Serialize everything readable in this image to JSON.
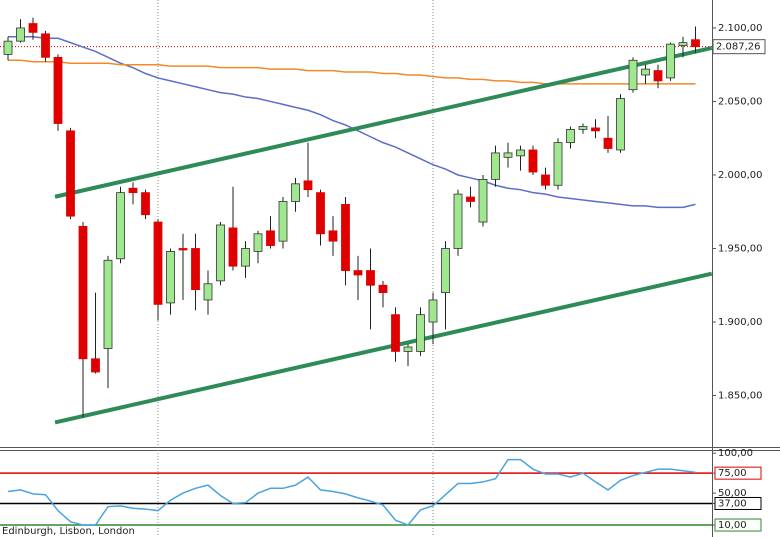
{
  "chart_data": [
    {
      "type": "candlestick",
      "open": [
        2082,
        2091,
        2103,
        2096,
        2080,
        2030,
        1965,
        1875,
        1882,
        1943,
        1991,
        1988,
        1968,
        1913,
        1950,
        1950,
        1915,
        1928,
        1964,
        1938,
        1948,
        1962,
        1955,
        1982,
        1996,
        1988,
        1962,
        1980,
        1935,
        1935,
        1925,
        1905,
        1880,
        1880,
        1900,
        1920,
        1950,
        1985,
        1968,
        1997,
        2012,
        2013,
        2017,
        2000,
        1993,
        2022,
        2031,
        2032,
        2025,
        2017,
        2058,
        2068,
        2071,
        2066,
        2088,
        2092
      ],
      "high": [
        2094,
        2106,
        2107,
        2098,
        2082,
        2032,
        1968,
        1920,
        1945,
        1992,
        1995,
        1990,
        1970,
        1950,
        1960,
        1960,
        1935,
        1968,
        1992,
        1955,
        1962,
        1972,
        1985,
        1998,
        2022,
        1990,
        1972,
        1985,
        1945,
        1950,
        1928,
        1910,
        1885,
        1910,
        1920,
        1955,
        1990,
        1992,
        2000,
        2020,
        2022,
        2020,
        2020,
        2005,
        2025,
        2033,
        2035,
        2038,
        2040,
        2055,
        2080,
        2075,
        2075,
        2090,
        2094,
        2101
      ],
      "low": [
        2078,
        2090,
        2092,
        2077,
        2030,
        1970,
        1835,
        1865,
        1855,
        1940,
        1980,
        1970,
        1901,
        1905,
        1915,
        1908,
        1905,
        1925,
        1935,
        1930,
        1940,
        1950,
        1950,
        1975,
        1985,
        1952,
        1945,
        1925,
        1915,
        1895,
        1910,
        1873,
        1870,
        1877,
        1885,
        1895,
        1945,
        1978,
        1965,
        1992,
        2005,
        2003,
        2000,
        1990,
        1990,
        2018,
        2028,
        2025,
        2015,
        2015,
        2056,
        2062,
        2059,
        2064,
        2080,
        2083
      ],
      "close": [
        2091,
        2100,
        2097,
        2080,
        2035,
        1972,
        1875,
        1866,
        1942,
        1988,
        1988,
        1973,
        1912,
        1948,
        1949,
        1922,
        1926,
        1966,
        1938,
        1950,
        1960,
        1952,
        1982,
        1994,
        1990,
        1960,
        1955,
        1935,
        1932,
        1925,
        1920,
        1880,
        1883,
        1905,
        1915,
        1950,
        1987,
        1982,
        1997,
        2015,
        2015,
        2017,
        2002,
        1993,
        2022,
        2031,
        2033,
        2030,
        2018,
        2052,
        2078,
        2072,
        2064,
        2089,
        2090,
        2087.26
      ],
      "up_color": "#9fe88f",
      "down_color": "#e00000",
      "series": [
        {
          "color": "#5a6ec8",
          "values": [
            2094,
            2094,
            2094,
            2093,
            2093,
            2090,
            2087,
            2084,
            2080,
            2076,
            2073,
            2069,
            2066,
            2064,
            2062,
            2060,
            2058,
            2056,
            2055,
            2053,
            2052,
            2050,
            2048,
            2046,
            2044,
            2041,
            2037,
            2034,
            2030,
            2026,
            2022,
            2019,
            2015,
            2011,
            2007,
            2004,
            2000,
            1998,
            1996,
            1993,
            1991,
            1990,
            1988,
            1987,
            1985,
            1984,
            1983,
            1982,
            1981,
            1980,
            1979,
            1979,
            1978,
            1978,
            1978,
            1980
          ]
        },
        {
          "color": "#f08a2a",
          "values": [
            2078,
            2078,
            2077,
            2077,
            2077,
            2076,
            2076,
            2076,
            2076,
            2075,
            2075,
            2075,
            2075,
            2074,
            2074,
            2074,
            2074,
            2073,
            2073,
            2073,
            2073,
            2072,
            2072,
            2072,
            2071,
            2071,
            2071,
            2070,
            2070,
            2070,
            2069,
            2069,
            2068,
            2068,
            2067,
            2066,
            2066,
            2065,
            2065,
            2064,
            2064,
            2063,
            2063,
            2062,
            2062,
            2062,
            2062,
            2062,
            2062,
            2062,
            2062,
            2062,
            2062,
            2062,
            2062,
            2062
          ]
        }
      ],
      "trendlines": [
        {
          "color": "#2e8b57",
          "from": [
            3.76,
            1985.2
          ],
          "to": [
            56.3,
            2086.4
          ]
        },
        {
          "color": "#2e8b57",
          "from": [
            3.76,
            1831.7
          ],
          "to": [
            56.3,
            1932.9
          ]
        }
      ],
      "vlines": [
        12,
        34
      ],
      "price_label": {
        "value": 2087.26,
        "label": "2.087,26"
      },
      "ylim": [
        1815,
        2119
      ],
      "yticks": [
        {
          "value": 2100,
          "label": "2.100,00"
        },
        {
          "value": 2050,
          "label": "2.050,00"
        },
        {
          "value": 2000,
          "label": "2.000,00"
        },
        {
          "value": 1950,
          "label": "1.950,00"
        },
        {
          "value": 1900,
          "label": "1.900,00"
        },
        {
          "value": 1850,
          "label": "1.850,00"
        }
      ]
    },
    {
      "type": "line",
      "series": [
        {
          "color": "#4aa3df",
          "values": [
            52,
            54,
            49,
            48,
            28,
            14,
            10,
            10,
            33,
            34,
            31,
            30,
            28,
            41,
            50,
            56,
            60,
            47,
            37,
            38,
            50,
            56,
            56,
            60,
            70,
            54,
            52,
            49,
            44,
            40,
            35,
            16,
            10,
            29,
            34,
            48,
            62,
            62,
            64,
            68,
            92,
            92,
            80,
            74,
            74,
            70,
            75,
            64,
            54,
            66,
            72,
            76,
            80,
            80,
            78,
            76
          ]
        }
      ],
      "levels": [
        {
          "value": 75,
          "color": "#e00000"
        },
        {
          "value": 37,
          "color": "#000000"
        },
        {
          "value": 10,
          "color": "#2e8b2e"
        }
      ],
      "ylim": [
        -5,
        104
      ],
      "yticks": [
        {
          "value": 100,
          "label": "100,00"
        },
        {
          "value": 75,
          "label": "75,00"
        },
        {
          "value": 50,
          "label": "50,00"
        },
        {
          "value": 37,
          "label": "37,00"
        },
        {
          "value": 10,
          "label": "10,00"
        }
      ]
    }
  ],
  "footer": "Edinburgh, Lisbon, London"
}
